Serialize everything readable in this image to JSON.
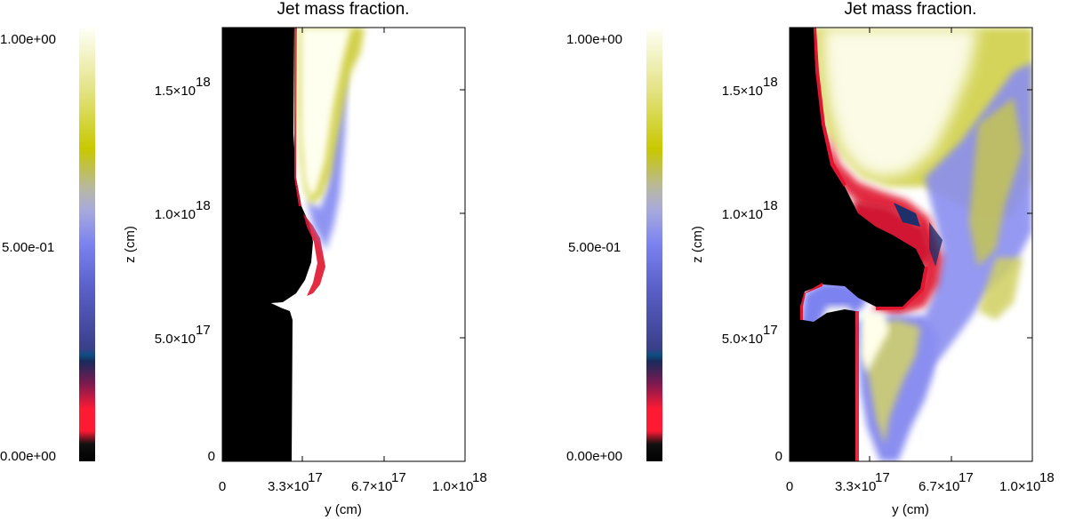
{
  "chart_data": [
    {
      "type": "heatmap",
      "title": "Jet mass fraction.",
      "xlabel": "y (cm)",
      "ylabel": "z (cm)",
      "xlim": [
        0,
        1e+18
      ],
      "ylim": [
        0,
        1.75e+18
      ],
      "x_ticks": [
        {
          "value": 0,
          "label": "0"
        },
        {
          "value": 3.3e+17,
          "label": "3.3×10",
          "exp": "17"
        },
        {
          "value": 6.7e+17,
          "label": "6.7×10",
          "exp": "17"
        },
        {
          "value": 1e+18,
          "label": "1.0×10",
          "exp": "18"
        }
      ],
      "y_ticks": [
        {
          "value": 0,
          "label": "0"
        },
        {
          "value": 5e+17,
          "label": "5.0×10",
          "exp": "17"
        },
        {
          "value": 1e+18,
          "label": "1.0×10",
          "exp": "18"
        },
        {
          "value": 1.5e+18,
          "label": "1.5×10",
          "exp": "18"
        }
      ],
      "colorbar": {
        "min": 0,
        "max": 1,
        "labels": [
          {
            "value": 1.0,
            "label": "1.00e+00"
          },
          {
            "value": 0.5,
            "label": "5.00e-01"
          },
          {
            "value": 0.0,
            "label": "0.00e+00"
          }
        ]
      }
    },
    {
      "type": "heatmap",
      "title": "Jet mass fraction.",
      "xlabel": "y (cm)",
      "ylabel": "z (cm)",
      "xlim": [
        0,
        1e+18
      ],
      "ylim": [
        0,
        1.75e+18
      ],
      "x_ticks": [
        {
          "value": 0,
          "label": "0"
        },
        {
          "value": 3.3e+17,
          "label": "3.3×10",
          "exp": "17"
        },
        {
          "value": 6.7e+17,
          "label": "6.7×10",
          "exp": "17"
        },
        {
          "value": 1e+18,
          "label": "1.0×10",
          "exp": "18"
        }
      ],
      "y_ticks": [
        {
          "value": 0,
          "label": "0"
        },
        {
          "value": 5e+17,
          "label": "5.0×10",
          "exp": "17"
        },
        {
          "value": 1e+18,
          "label": "1.0×10",
          "exp": "18"
        },
        {
          "value": 1.5e+18,
          "label": "1.5×10",
          "exp": "18"
        }
      ],
      "colorbar": {
        "min": 0,
        "max": 1,
        "labels": [
          {
            "value": 1.0,
            "label": "1.00e+00"
          },
          {
            "value": 0.5,
            "label": "5.00e-01"
          },
          {
            "value": 0.0,
            "label": "0.00e+00"
          }
        ]
      }
    }
  ],
  "colormap": [
    "#000000",
    "#ff1a33",
    "#1f3a6e",
    "#7b82f0",
    "#b0b0b0",
    "#c8c800",
    "#fffff5"
  ]
}
